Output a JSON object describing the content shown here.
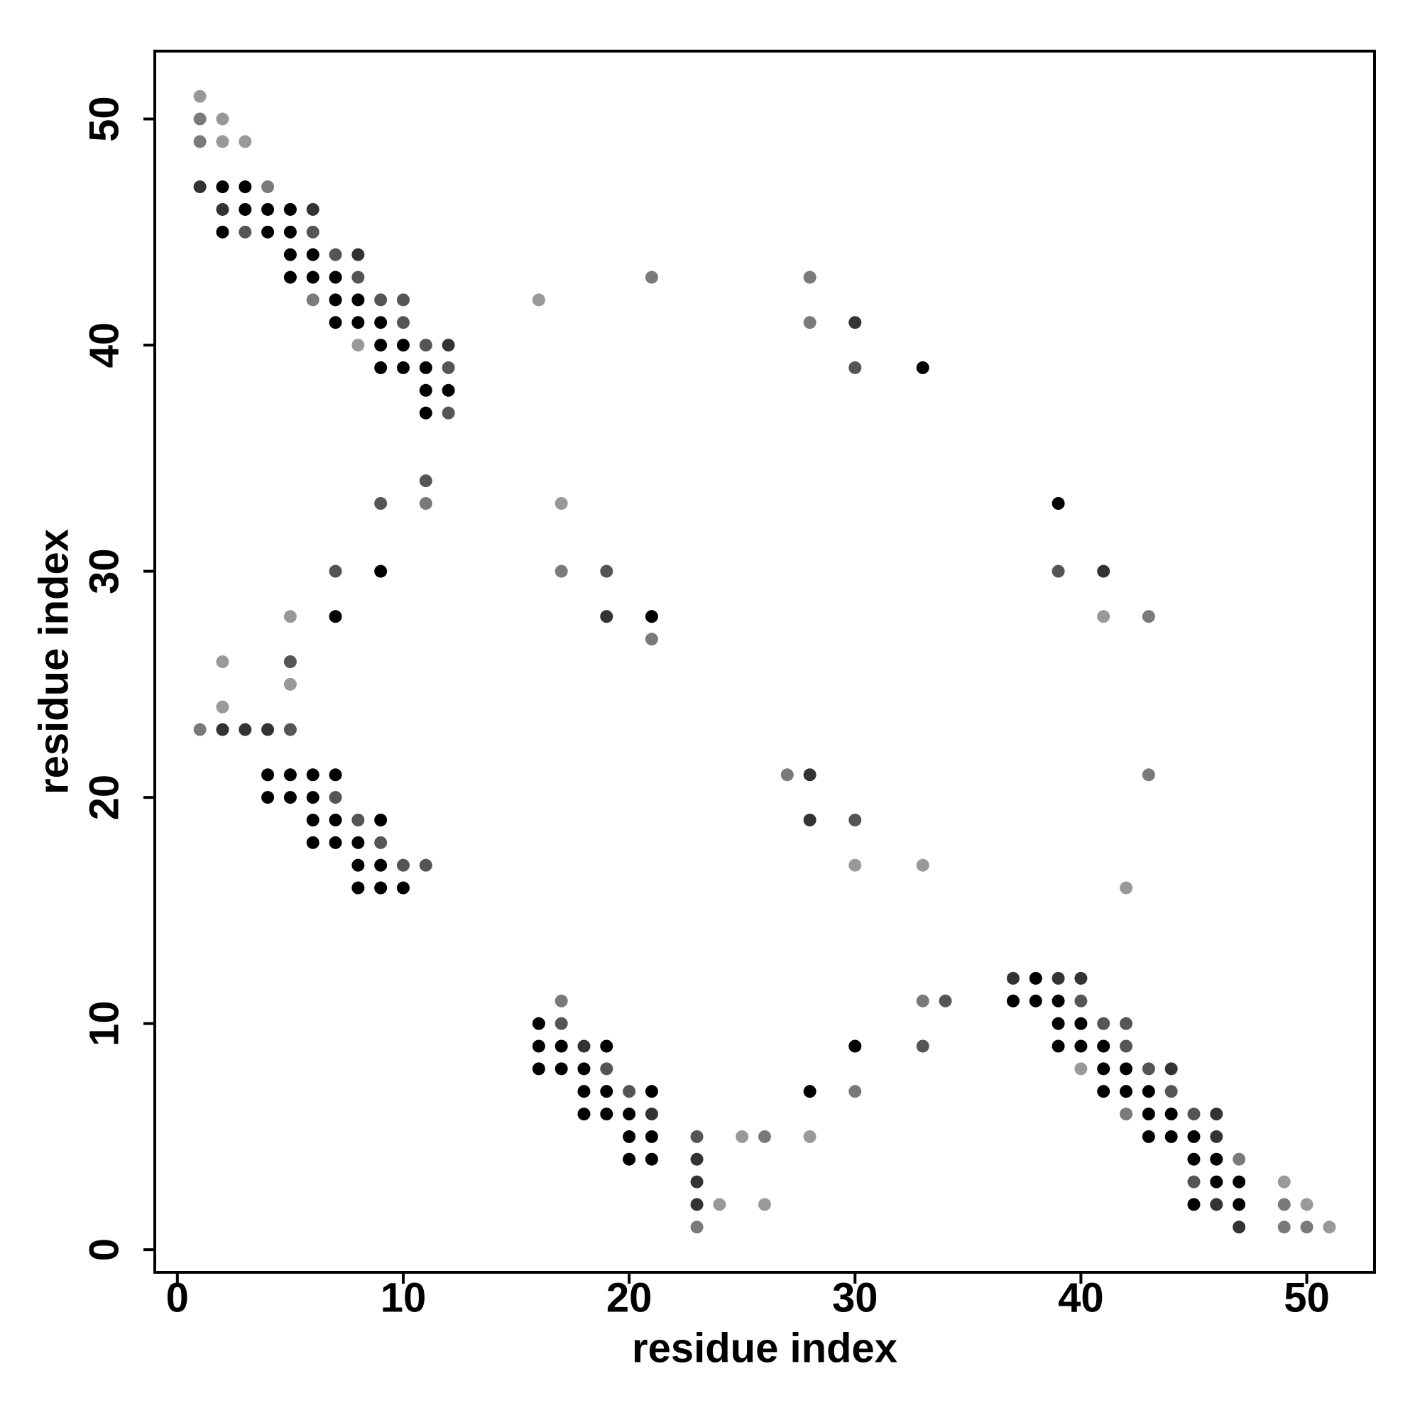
{
  "chart_data": {
    "type": "scatter",
    "x_label": "residue index",
    "y_label": "residue index",
    "xlim": [
      -1,
      53
    ],
    "ylim": [
      -1,
      53
    ],
    "xticks": [
      0,
      10,
      20,
      30,
      40,
      50
    ],
    "yticks": [
      0,
      10,
      20,
      30,
      40,
      50
    ],
    "x": [
      1,
      1,
      2,
      1,
      2,
      3,
      1,
      2,
      3,
      4,
      2,
      3,
      4,
      5,
      6,
      2,
      3,
      4,
      5,
      6,
      5,
      6,
      7,
      8,
      5,
      6,
      7,
      8,
      6,
      7,
      8,
      9,
      10,
      7,
      8,
      9,
      10,
      8,
      9,
      10,
      11,
      12,
      9,
      10,
      11,
      12,
      11,
      12,
      11,
      12,
      16,
      21,
      28,
      28,
      30,
      30,
      33,
      11,
      9,
      11,
      17,
      39,
      7,
      9,
      17,
      19,
      39,
      41,
      5,
      7,
      19,
      21,
      21,
      41,
      43,
      2,
      5,
      5,
      2,
      1,
      2,
      3,
      4,
      5,
      4,
      5,
      6,
      7,
      27,
      28,
      43,
      4,
      5,
      6,
      7,
      6,
      7,
      8,
      9,
      28,
      30,
      6,
      7,
      8,
      9,
      8,
      9,
      10,
      11,
      30,
      33,
      8,
      9,
      10,
      42,
      37,
      38,
      39,
      40,
      17,
      33,
      34,
      37,
      38,
      39,
      40,
      16,
      17,
      39,
      40,
      41,
      42,
      16,
      17,
      18,
      19,
      30,
      33,
      39,
      40,
      41,
      42,
      16,
      17,
      18,
      19,
      40,
      41,
      42,
      43,
      44,
      18,
      19,
      20,
      21,
      28,
      30,
      41,
      42,
      43,
      44,
      18,
      19,
      20,
      21,
      42,
      43,
      44,
      45,
      46,
      20,
      21,
      23,
      25,
      26,
      28,
      43,
      44,
      45,
      46,
      20,
      21,
      23,
      45,
      46,
      47,
      23,
      45,
      46,
      47,
      49,
      23,
      24,
      26,
      45,
      46,
      47,
      49,
      50,
      23,
      47,
      49,
      50,
      51
    ],
    "values": [
      51,
      50,
      50,
      49,
      49,
      49,
      47,
      47,
      47,
      47,
      46,
      46,
      46,
      46,
      46,
      45,
      45,
      45,
      45,
      45,
      44,
      44,
      44,
      44,
      43,
      43,
      43,
      43,
      42,
      42,
      42,
      42,
      42,
      41,
      41,
      41,
      41,
      40,
      40,
      40,
      40,
      40,
      39,
      39,
      39,
      39,
      38,
      38,
      37,
      37,
      42,
      43,
      43,
      41,
      41,
      39,
      39,
      34,
      33,
      33,
      33,
      33,
      30,
      30,
      30,
      30,
      30,
      30,
      28,
      28,
      28,
      28,
      27,
      28,
      28,
      26,
      26,
      25,
      24,
      23,
      23,
      23,
      23,
      23,
      21,
      21,
      21,
      21,
      21,
      21,
      21,
      20,
      20,
      20,
      20,
      19,
      19,
      19,
      19,
      19,
      19,
      18,
      18,
      18,
      18,
      17,
      17,
      17,
      17,
      17,
      17,
      16,
      16,
      16,
      16,
      12,
      12,
      12,
      12,
      11,
      11,
      11,
      11,
      11,
      11,
      11,
      10,
      10,
      10,
      10,
      10,
      10,
      9,
      9,
      9,
      9,
      9,
      9,
      9,
      9,
      9,
      9,
      8,
      8,
      8,
      8,
      8,
      8,
      8,
      8,
      8,
      7,
      7,
      7,
      7,
      7,
      7,
      7,
      7,
      7,
      7,
      6,
      6,
      6,
      6,
      6,
      6,
      6,
      6,
      6,
      5,
      5,
      5,
      5,
      5,
      5,
      5,
      5,
      5,
      5,
      4,
      4,
      4,
      4,
      4,
      4,
      3,
      3,
      3,
      3,
      3,
      2,
      2,
      2,
      2,
      2,
      2,
      2,
      2,
      1,
      1,
      1,
      1,
      1
    ],
    "colors": [
      "#999999",
      "#7a7a7a",
      "#999999",
      "#7a7a7a",
      "#999999",
      "#999999",
      "#333333",
      "#000000",
      "#000000",
      "#7a7a7a",
      "#333333",
      "#000000",
      "#000000",
      "#000000",
      "#333333",
      "#000000",
      "#555555",
      "#000000",
      "#000000",
      "#555555",
      "#000000",
      "#000000",
      "#555555",
      "#333333",
      "#000000",
      "#000000",
      "#000000",
      "#555555",
      "#7a7a7a",
      "#000000",
      "#000000",
      "#555555",
      "#555555",
      "#000000",
      "#000000",
      "#000000",
      "#555555",
      "#999999",
      "#000000",
      "#000000",
      "#555555",
      "#333333",
      "#000000",
      "#000000",
      "#000000",
      "#555555",
      "#000000",
      "#000000",
      "#000000",
      "#555555",
      "#999999",
      "#7a7a7a",
      "#7a7a7a",
      "#7a7a7a",
      "#333333",
      "#555555",
      "#000000",
      "#555555",
      "#555555",
      "#7a7a7a",
      "#999999",
      "#000000",
      "#555555",
      "#000000",
      "#7a7a7a",
      "#555555",
      "#555555",
      "#333333",
      "#999999",
      "#000000",
      "#333333",
      "#000000",
      "#7a7a7a",
      "#999999",
      "#7a7a7a",
      "#999999",
      "#555555",
      "#999999",
      "#999999",
      "#7a7a7a",
      "#333333",
      "#333333",
      "#333333",
      "#555555",
      "#000000",
      "#000000",
      "#000000",
      "#000000",
      "#7a7a7a",
      "#333333",
      "#7a7a7a",
      "#000000",
      "#000000",
      "#000000",
      "#555555",
      "#000000",
      "#000000",
      "#555555",
      "#000000",
      "#333333",
      "#555555",
      "#000000",
      "#000000",
      "#000000",
      "#555555",
      "#000000",
      "#000000",
      "#555555",
      "#555555",
      "#999999",
      "#999999",
      "#000000",
      "#000000",
      "#000000",
      "#999999",
      "#333333",
      "#000000",
      "#333333",
      "#333333",
      "#7a7a7a",
      "#7a7a7a",
      "#555555",
      "#000000",
      "#000000",
      "#000000",
      "#555555",
      "#000000",
      "#555555",
      "#000000",
      "#000000",
      "#555555",
      "#555555",
      "#000000",
      "#000000",
      "#333333",
      "#000000",
      "#000000",
      "#555555",
      "#000000",
      "#000000",
      "#000000",
      "#555555",
      "#000000",
      "#000000",
      "#000000",
      "#555555",
      "#999999",
      "#000000",
      "#000000",
      "#555555",
      "#333333",
      "#000000",
      "#000000",
      "#555555",
      "#000000",
      "#000000",
      "#7a7a7a",
      "#000000",
      "#000000",
      "#000000",
      "#555555",
      "#000000",
      "#000000",
      "#000000",
      "#333333",
      "#7a7a7a",
      "#000000",
      "#000000",
      "#555555",
      "#333333",
      "#000000",
      "#000000",
      "#555555",
      "#999999",
      "#7a7a7a",
      "#999999",
      "#000000",
      "#000000",
      "#000000",
      "#333333",
      "#000000",
      "#000000",
      "#333333",
      "#000000",
      "#000000",
      "#7a7a7a",
      "#333333",
      "#555555",
      "#000000",
      "#000000",
      "#999999",
      "#333333",
      "#999999",
      "#999999",
      "#000000",
      "#333333",
      "#000000",
      "#7a7a7a",
      "#999999",
      "#7a7a7a",
      "#333333",
      "#7a7a7a",
      "#7a7a7a",
      "#999999"
    ]
  }
}
